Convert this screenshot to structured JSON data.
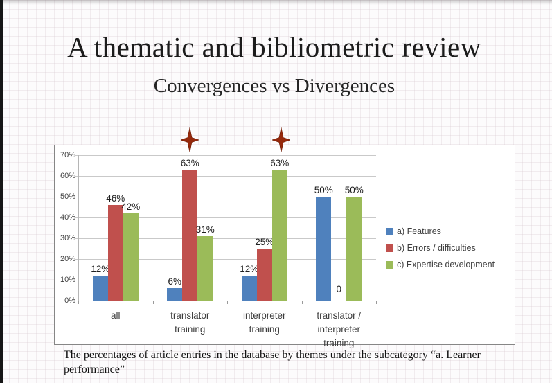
{
  "page": {
    "title": "A thematic and bibliometric review",
    "subtitle": "Convergences vs Divergences",
    "caption": "The percentages of article entries in the database by themes under the subcategory “a. Learner performance”"
  },
  "chart_data": {
    "type": "bar",
    "title": "",
    "xlabel": "",
    "ylabel": "",
    "categories": [
      "all",
      "translator training",
      "interpreter training",
      "translator / interpreter training"
    ],
    "category_label_lines": [
      [
        "all"
      ],
      [
        "translator",
        "training"
      ],
      [
        "interpreter",
        "training"
      ],
      [
        "translator /",
        "interpreter",
        "training"
      ]
    ],
    "series": [
      {
        "name": "a) Features",
        "color": "#4F81BD",
        "values": [
          12,
          6,
          12,
          50
        ],
        "labels": [
          "12%",
          "6%",
          "12%",
          "50%"
        ]
      },
      {
        "name": "b) Errors / difficulties",
        "color": "#C0504D",
        "values": [
          46,
          63,
          25,
          0
        ],
        "labels": [
          "46%",
          "63%",
          "25%",
          "0"
        ]
      },
      {
        "name": "c) Expertise development",
        "color": "#9BBB59",
        "values": [
          42,
          31,
          63,
          50
        ],
        "labels": [
          "42%",
          "31%",
          "63%",
          "50%"
        ]
      }
    ],
    "ylim": [
      0,
      70
    ],
    "ytick_step": 10,
    "ytick_labels": [
      "0%",
      "10%",
      "20%",
      "30%",
      "40%",
      "50%",
      "60%",
      "70%"
    ],
    "grid": true,
    "legend_position": "right-inside",
    "annotations": [
      {
        "type": "four-point-star",
        "color": "#96290C",
        "note": "above 63% bar of translator training (b series)"
      },
      {
        "type": "four-point-star",
        "color": "#96290C",
        "note": "above 63% bar of interpreter training (c series)"
      }
    ]
  }
}
